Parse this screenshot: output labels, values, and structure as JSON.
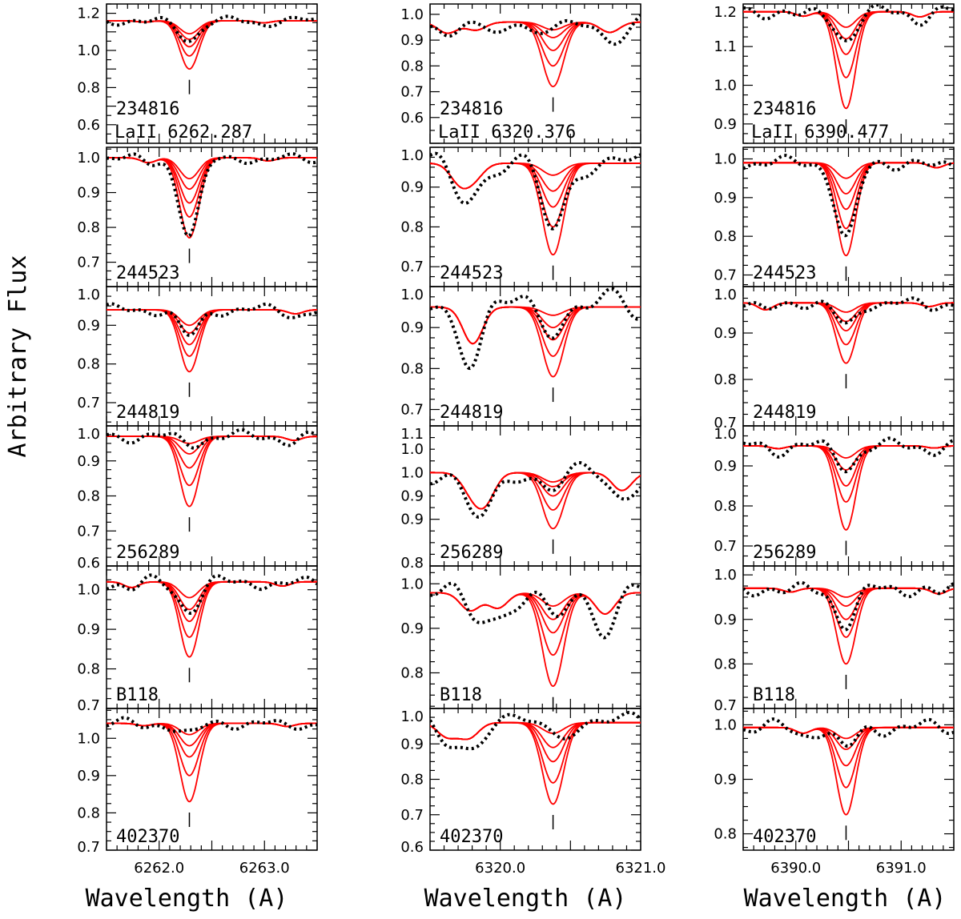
{
  "chart_data": {
    "type": "line",
    "ylabel": "Arbitrary Flux",
    "xlabel": "Wavelength (A)",
    "colors": {
      "observed": "#000000",
      "synthetic": "#ff0000"
    },
    "observed_style": "dotted",
    "synthetic_style": "solid",
    "stars": [
      "234816",
      "244523",
      "244819",
      "256289",
      "B118",
      "402370"
    ],
    "columns": [
      {
        "line_label": "LaII 6262.287",
        "center": 6262.287,
        "xlim": [
          6261.5,
          6263.5
        ],
        "xticks_labeled": [
          "6262.0",
          "6263.0"
        ],
        "xtick_values": [
          6262.0,
          6263.0
        ],
        "panels": [
          {
            "star": "234816",
            "ylim": [
              0.5,
              1.25
            ],
            "yticks": [
              "1.2",
              "1.0",
              "0.8",
              "0.6"
            ],
            "ytick_values": [
              1.2,
              1.0,
              0.8,
              0.6
            ],
            "continuum": 1.16,
            "synthetic_depths": [
              0.07,
              0.1,
              0.14,
              0.19,
              0.26
            ],
            "observed_depth": 0.1,
            "obs_noise": 0.015
          },
          {
            "star": "244523",
            "ylim": [
              0.63,
              1.03
            ],
            "yticks": [
              "1.0",
              "0.9",
              "0.8",
              "0.7"
            ],
            "ytick_values": [
              1.0,
              0.9,
              0.8,
              0.7
            ],
            "continuum": 1.0,
            "synthetic_depths": [
              0.06,
              0.09,
              0.13,
              0.17,
              0.23
            ],
            "observed_depth": 0.22,
            "obs_noise": 0.01
          },
          {
            "star": "244819",
            "ylim": [
              0.64,
              1.0
            ],
            "yticks": [
              "1.0",
              "0.9",
              "0.8",
              "0.7"
            ],
            "ytick_values": [
              1.0,
              0.9,
              0.8,
              0.7
            ],
            "continuum": 0.94,
            "synthetic_depths": [
              0.04,
              0.06,
              0.09,
              0.12,
              0.16
            ],
            "observed_depth": 0.07,
            "obs_noise": 0.01
          },
          {
            "star": "256289",
            "ylim": [
              0.6,
              1.0
            ],
            "yticks": [
              "1.0",
              "0.9",
              "0.8",
              "0.7",
              "0.6"
            ],
            "ytick_values": [
              1.0,
              0.9,
              0.8,
              0.7,
              0.6
            ],
            "continuum": 0.97,
            "synthetic_depths": [
              0.02,
              0.05,
              0.09,
              0.14,
              0.2
            ],
            "observed_depth": 0.02,
            "obs_noise": 0.012
          },
          {
            "star": "B118",
            "ylim": [
              0.7,
              1.06
            ],
            "yticks": [
              "1.0",
              "0.9",
              "0.8",
              "0.7"
            ],
            "ytick_values": [
              1.0,
              0.9,
              0.8,
              0.7
            ],
            "continuum": 1.02,
            "synthetic_depths": [
              0.04,
              0.07,
              0.1,
              0.14,
              0.19
            ],
            "observed_depth": 0.07,
            "obs_noise": 0.012
          },
          {
            "star": "402370",
            "ylim": [
              0.7,
              1.08
            ],
            "yticks": [
              "1.0",
              "0.9",
              "0.8",
              "0.7"
            ],
            "ytick_values": [
              1.0,
              0.9,
              0.8,
              0.7
            ],
            "continuum": 1.04,
            "synthetic_depths": [
              0.03,
              0.06,
              0.09,
              0.14,
              0.21
            ],
            "observed_depth": 0.03,
            "obs_noise": 0.01
          }
        ]
      },
      {
        "line_label": "LaII 6320.376",
        "center": 6320.376,
        "xlim": [
          6319.5,
          6321.0
        ],
        "xticks_labeled": [
          "6320.0",
          "6321.0"
        ],
        "xtick_values": [
          6320.0,
          6321.0
        ],
        "panels": [
          {
            "star": "234816",
            "ylim": [
              0.5,
              1.04
            ],
            "yticks": [
              "1.0",
              "0.9",
              "0.8",
              "0.7",
              "0.6"
            ],
            "ytick_values": [
              1.0,
              0.9,
              0.8,
              0.7,
              0.6
            ],
            "continuum": 0.97,
            "synthetic_depths": [
              0.03,
              0.06,
              0.11,
              0.17,
              0.25
            ],
            "observed_depth": 0.06,
            "obs_noise": 0.03
          },
          {
            "star": "244523",
            "ylim": [
              0.65,
              1.0
            ],
            "yticks": [
              "1.0",
              "0.9",
              "0.8",
              "0.7"
            ],
            "ytick_values": [
              1.0,
              0.9,
              0.8,
              0.7
            ],
            "continuum": 0.96,
            "synthetic_depths": [
              0.03,
              0.07,
              0.11,
              0.16,
              0.23
            ],
            "observed_depth": 0.17,
            "obs_noise": 0.02
          },
          {
            "star": "244819",
            "ylim": [
              0.66,
              1.0
            ],
            "yticks": [
              "1.0",
              "0.9",
              "0.8",
              "0.7"
            ],
            "ytick_values": [
              1.0,
              0.9,
              0.8,
              0.7
            ],
            "continuum": 0.95,
            "synthetic_depths": [
              0.02,
              0.05,
              0.08,
              0.12,
              0.17
            ],
            "observed_depth": 0.03,
            "obs_noise": 0.03
          },
          {
            "star": "256289",
            "ylim": [
              0.8,
              1.1
            ],
            "yticks": [
              "1.1",
              "1.0",
              "1.0",
              "0.9",
              "0.9",
              "0.8"
            ],
            "ytick_values": [
              1.1,
              1.05,
              1.0,
              0.95,
              0.9,
              0.8
            ],
            "continuum": 1.0,
            "synthetic_depths": [
              0.02,
              0.03,
              0.05,
              0.08,
              0.12
            ],
            "observed_depth": 0.03,
            "obs_noise": 0.015
          },
          {
            "star": "B118",
            "ylim": [
              0.72,
              1.04
            ],
            "yticks": [
              "1.0",
              "0.9",
              "0.8"
            ],
            "ytick_values": [
              1.0,
              0.9,
              0.8
            ],
            "continuum": 0.98,
            "synthetic_depths": [
              0.03,
              0.06,
              0.09,
              0.14,
              0.21
            ],
            "observed_depth": 0.07,
            "obs_noise": 0.025
          },
          {
            "star": "402370",
            "ylim": [
              0.6,
              1.0
            ],
            "yticks": [
              "1.0",
              "0.9",
              "0.8",
              "0.7",
              "0.6"
            ],
            "ytick_values": [
              1.0,
              0.9,
              0.8,
              0.7,
              0.6
            ],
            "continuum": 0.96,
            "synthetic_depths": [
              0.03,
              0.07,
              0.11,
              0.17,
              0.23
            ],
            "observed_depth": 0.03,
            "obs_noise": 0.02
          }
        ]
      },
      {
        "line_label": "LaII 6390.477",
        "center": 6390.477,
        "xlim": [
          6389.5,
          6391.5
        ],
        "xticks_labeled": [
          "6390.0",
          "6391.0"
        ],
        "xtick_values": [
          6390.0,
          6391.0
        ],
        "panels": [
          {
            "star": "234816",
            "ylim": [
              0.85,
              1.21
            ],
            "yticks": [
              "1.2",
              "1.1",
              "1.0",
              "0.9"
            ],
            "ytick_values": [
              1.2,
              1.1,
              1.0,
              0.9
            ],
            "continuum": 1.19,
            "synthetic_depths": [
              0.04,
              0.07,
              0.11,
              0.17,
              0.25
            ],
            "observed_depth": 0.07,
            "obs_noise": 0.012
          },
          {
            "star": "244523",
            "ylim": [
              0.67,
              1.03
            ],
            "yticks": [
              "1.0",
              "0.9",
              "0.8",
              "0.7"
            ],
            "ytick_values": [
              1.0,
              0.9,
              0.8,
              0.7
            ],
            "continuum": 0.99,
            "synthetic_depths": [
              0.04,
              0.08,
              0.12,
              0.17,
              0.24
            ],
            "observed_depth": 0.2,
            "obs_noise": 0.012
          },
          {
            "star": "244819",
            "ylim": [
              0.7,
              1.0
            ],
            "yticks": [
              "1.0",
              "0.9",
              "0.8",
              "0.7"
            ],
            "ytick_values": [
              1.0,
              0.9,
              0.8,
              0.7
            ],
            "continuum": 0.965,
            "synthetic_depths": [
              0.02,
              0.04,
              0.06,
              0.09,
              0.13
            ],
            "observed_depth": 0.05,
            "obs_noise": 0.008
          },
          {
            "star": "256289",
            "ylim": [
              0.65,
              1.0
            ],
            "yticks": [
              "1.0",
              "0.9",
              "0.8",
              "0.7"
            ],
            "ytick_values": [
              1.0,
              0.9,
              0.8,
              0.7
            ],
            "continuum": 0.95,
            "synthetic_depths": [
              0.03,
              0.06,
              0.1,
              0.14,
              0.21
            ],
            "observed_depth": 0.05,
            "obs_noise": 0.012
          },
          {
            "star": "B118",
            "ylim": [
              0.7,
              1.02
            ],
            "yticks": [
              "1.0",
              "0.9",
              "0.8",
              "0.7"
            ],
            "ytick_values": [
              1.0,
              0.9,
              0.8,
              0.7
            ],
            "continuum": 0.97,
            "synthetic_depths": [
              0.02,
              0.04,
              0.07,
              0.11,
              0.17
            ],
            "observed_depth": 0.08,
            "obs_noise": 0.012
          },
          {
            "star": "402370",
            "ylim": [
              0.77,
              1.03
            ],
            "yticks": [
              "1.0",
              "0.9",
              "0.8"
            ],
            "ytick_values": [
              1.0,
              0.9,
              0.8
            ],
            "continuum": 0.995,
            "synthetic_depths": [
              0.02,
              0.04,
              0.07,
              0.11,
              0.16
            ],
            "observed_depth": 0.04,
            "obs_noise": 0.01
          }
        ]
      }
    ]
  }
}
